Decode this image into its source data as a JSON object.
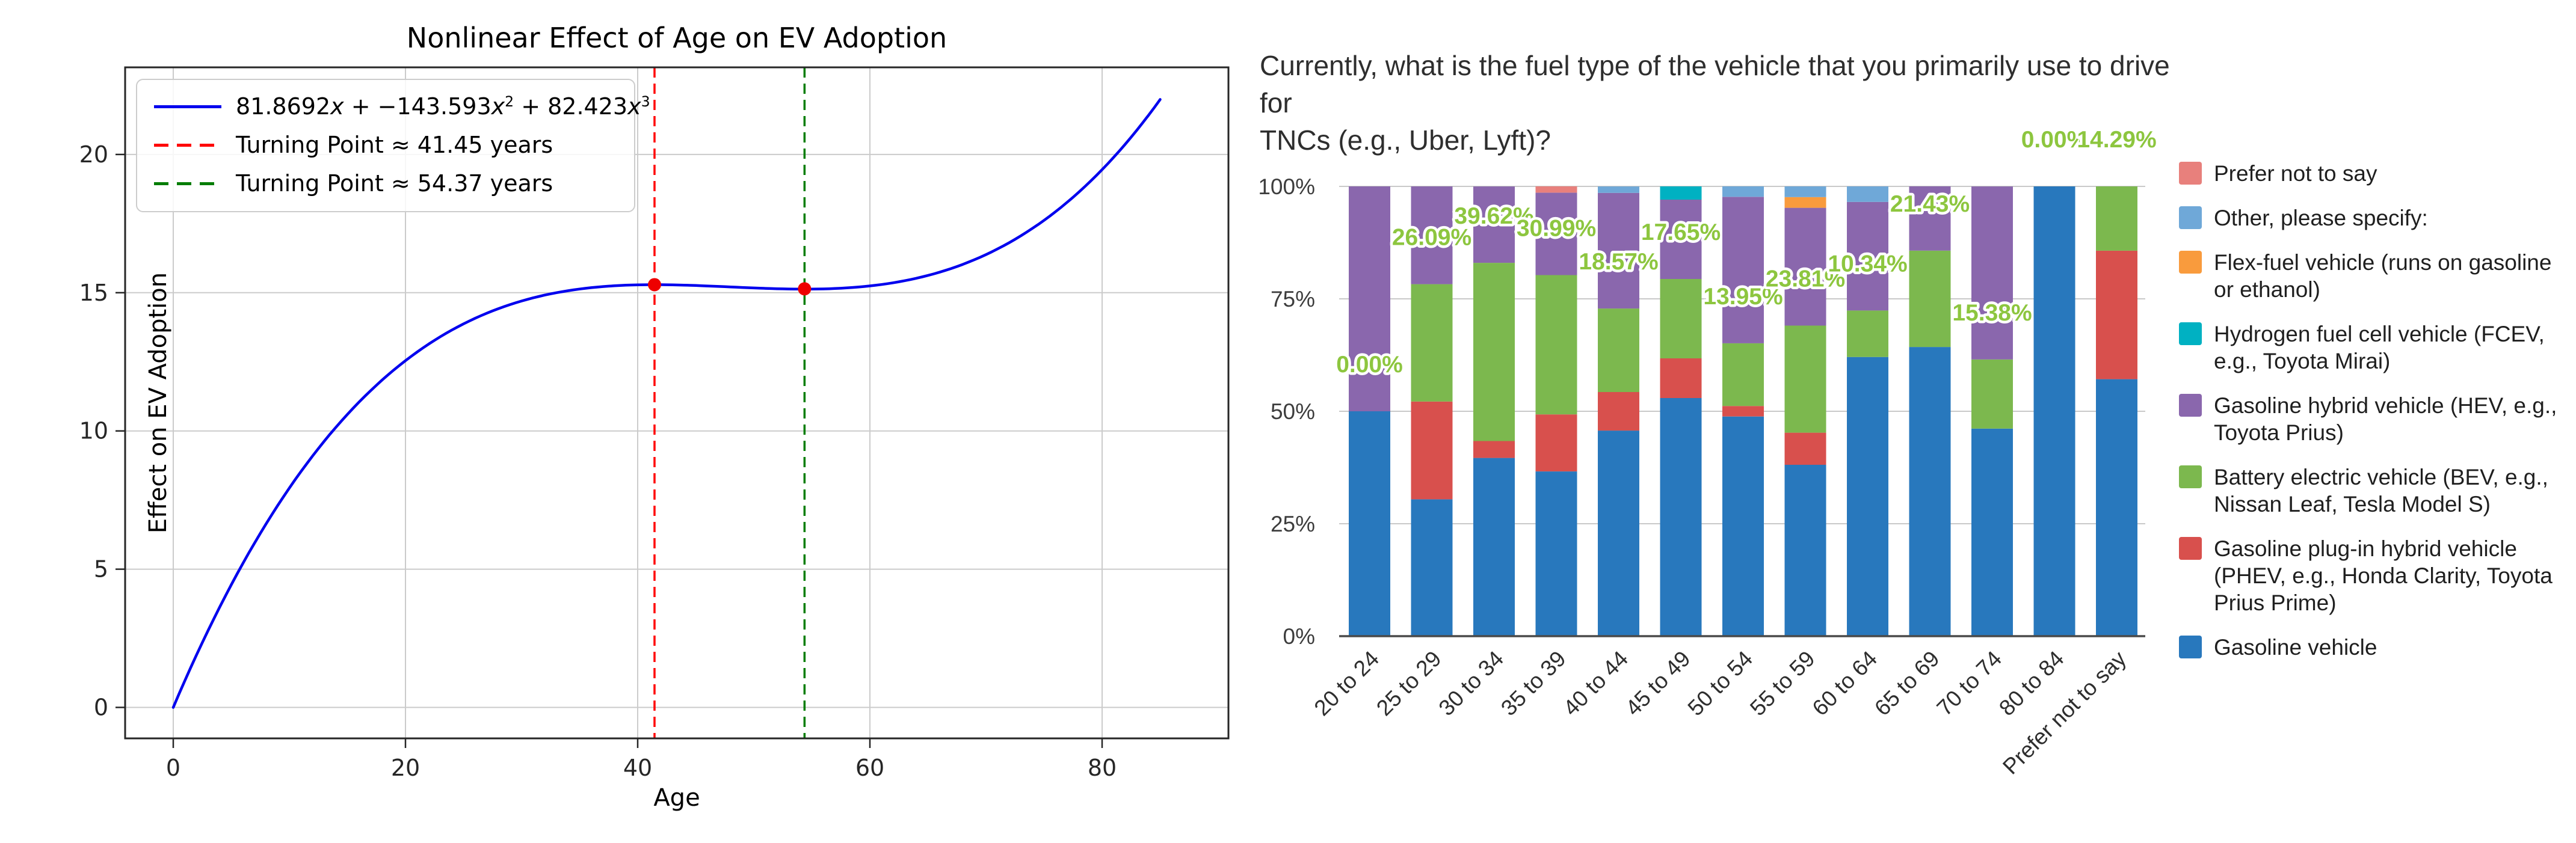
{
  "page": {
    "background": "#ffffff"
  },
  "chart_data": [
    {
      "type": "line",
      "title": "Nonlinear Effect of Age on EV Adoption",
      "xlabel": "Age",
      "ylabel": "Effect on EV Adoption",
      "x_ticks": [
        0,
        20,
        40,
        60,
        80
      ],
      "y_ticks": [
        0,
        5,
        10,
        15,
        20
      ],
      "xlim": [
        -4.2,
        91.5
      ],
      "ylim": [
        -1.1,
        23.2
      ],
      "grid": true,
      "legend_position": "upper left",
      "legend_formula_parts": {
        "c1": "81.8692",
        "v1": "x",
        "c2": " + −143.593",
        "v2": "x",
        "e2": "2",
        "c3": " + 82.423",
        "v3": "x",
        "e3": "3"
      },
      "series": [
        {
          "name": "81.8692x + -143.593x^2 + 82.423x^3",
          "color": "#0000ee",
          "style": "solid",
          "x_range": [
            0,
            85
          ],
          "render_cubic": {
            "a": 0.00014633,
            "b": -0.021033,
            "c": 0.98928
          },
          "sample_points": [
            [
              0,
              0
            ],
            [
              10,
              7.9
            ],
            [
              20,
              12.5
            ],
            [
              30,
              14.7
            ],
            [
              41.45,
              15.29
            ],
            [
              54.37,
              15.14
            ],
            [
              60,
              15.25
            ],
            [
              70,
              16.4
            ],
            [
              80,
              19.4
            ],
            [
              85,
              22.0
            ]
          ]
        },
        {
          "name": "Turning Point ≈ 41.45 years",
          "color": "#ff0000",
          "style": "dashed",
          "x": 41.45
        },
        {
          "name": "Turning Point ≈ 54.37 years",
          "color": "#007d00",
          "style": "dashed",
          "x": 54.37
        }
      ],
      "markers": [
        {
          "x": 41.45,
          "y": 15.29,
          "color": "#ee0000"
        },
        {
          "x": 54.37,
          "y": 15.14,
          "color": "#ee0000"
        }
      ]
    },
    {
      "type": "bar",
      "stacked": true,
      "y_unit": "%",
      "title_lines": [
        "Currently, what is the fuel type of the vehicle that you primarily use to drive for",
        "TNCs (e.g., Uber, Lyft)?"
      ],
      "categories": [
        "20 to 24",
        "25 to 29",
        "30 to 34",
        "35 to 39",
        "40 to 44",
        "45 to 49",
        "50 to 54",
        "55 to 59",
        "60 to 64",
        "65 to 69",
        "70 to 74",
        "80 to 84",
        "Prefer not to say"
      ],
      "y_tick_labels": [
        "0%",
        "25%",
        "50%",
        "75%",
        "100%"
      ],
      "ylim": [
        0,
        100
      ],
      "grid": true,
      "series": [
        {
          "name": "Gasoline vehicle",
          "color": "#2878bd",
          "values": [
            50.0,
            30.43,
            39.62,
            36.62,
            45.71,
            52.94,
            48.84,
            38.1,
            62.07,
            64.29,
            46.15,
            100.0,
            57.14
          ]
        },
        {
          "name": "Gasoline plug-in hybrid vehicle (PHEV, e.g., Honda Clarity, Toyota Prius Prime)",
          "color": "#d8504d",
          "values": [
            0,
            21.74,
            3.77,
            12.68,
            8.57,
            8.82,
            2.33,
            7.14,
            0,
            0,
            0,
            0,
            28.57
          ]
        },
        {
          "name": "Battery electric vehicle (BEV, e.g., Nissan Leaf, Tesla Model S)",
          "color": "#7cb84e",
          "values": [
            0,
            26.09,
            39.62,
            30.99,
            18.57,
            17.65,
            13.95,
            23.81,
            10.34,
            21.43,
            15.38,
            0,
            14.29
          ]
        },
        {
          "name": "Gasoline hybrid vehicle (HEV, e.g., Toyota Prius)",
          "color": "#8a67ad",
          "values": [
            50.0,
            21.74,
            16.98,
            18.31,
            25.71,
            17.65,
            32.56,
            26.19,
            24.14,
            14.29,
            38.46,
            0,
            0
          ]
        },
        {
          "name": "Hydrogen fuel cell vehicle (FCEV, e.g., Toyota Mirai)",
          "color": "#00b1c2",
          "values": [
            0,
            0,
            0,
            0,
            0,
            2.94,
            0,
            0,
            0,
            0,
            0,
            0,
            0
          ]
        },
        {
          "name": "Flex-fuel vehicle (runs on gasoline or ethanol)",
          "color": "#f99b3d",
          "values": [
            0,
            0,
            0,
            0,
            0,
            0,
            0,
            2.38,
            0,
            0,
            0,
            0,
            0
          ]
        },
        {
          "name": "Other, please specify:",
          "color": "#6fa8d8",
          "values": [
            0,
            0,
            0,
            0,
            1.43,
            0,
            2.33,
            2.38,
            3.45,
            0,
            0,
            0,
            0
          ]
        },
        {
          "name": "Prefer not to say",
          "color": "#e8807c",
          "values": [
            0,
            0,
            0,
            1.41,
            0,
            0,
            0,
            0,
            0,
            0,
            0,
            0,
            0
          ]
        }
      ],
      "bev_value_labels": [
        "0.00%",
        "26.09%",
        "39.62%",
        "30.99%",
        "18.57%",
        "17.65%",
        "13.95%",
        "23.81%",
        "10.34%",
        "21.43%",
        "15.38%",
        "0.00%",
        "14.29%"
      ],
      "value_label_color": "#8dc63f",
      "legend": [
        {
          "label": "Prefer not to say",
          "color": "#e8807c"
        },
        {
          "label": "Other, please specify:",
          "color": "#6fa8d8"
        },
        {
          "label": "Flex-fuel vehicle (runs on gasoline or ethanol)",
          "color": "#f99b3d"
        },
        {
          "label": "Hydrogen fuel cell vehicle (FCEV, e.g., Toyota Mirai)",
          "color": "#00b1c2"
        },
        {
          "label": "Gasoline hybrid vehicle (HEV, e.g., Toyota Prius)",
          "color": "#8a67ad"
        },
        {
          "label": "Battery electric vehicle (BEV, e.g., Nissan Leaf, Tesla Model S)",
          "color": "#7cb84e"
        },
        {
          "label": "Gasoline plug-in hybrid vehicle (PHEV, e.g., Honda Clarity, Toyota Prius Prime)",
          "color": "#d8504d"
        },
        {
          "label": "Gasoline vehicle",
          "color": "#2878bd"
        }
      ]
    }
  ]
}
